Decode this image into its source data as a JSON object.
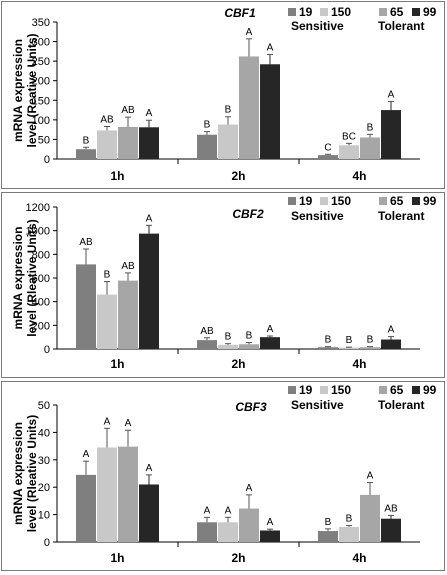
{
  "chart_data": [
    {
      "type": "bar",
      "title": "CBF1",
      "ylabel_line1": "mRNA expression",
      "ylabel_line2": "level (Reative Units)",
      "ylim": [
        0,
        350
      ],
      "yticks": [
        0,
        50,
        100,
        150,
        200,
        250,
        300,
        350
      ],
      "categories": [
        "1h",
        "2h",
        "4h"
      ],
      "legend": {
        "entries": [
          "19",
          "150",
          "65",
          "99"
        ],
        "group_labels": [
          "Sensitive",
          "Tolerant"
        ],
        "placement": "top-right"
      },
      "series": [
        {
          "name": "19",
          "color": "#7f7f7f",
          "values": [
            25,
            62,
            10
          ],
          "errors": [
            5,
            8,
            2
          ],
          "letters": [
            "B",
            "B",
            "C"
          ]
        },
        {
          "name": "150",
          "color": "#c8c8c8",
          "values": [
            73,
            88,
            35
          ],
          "errors": [
            10,
            20,
            5
          ],
          "letters": [
            "AB",
            "B",
            "BC"
          ]
        },
        {
          "name": "65",
          "color": "#a6a6a6",
          "values": [
            82,
            262,
            55
          ],
          "errors": [
            25,
            45,
            8
          ],
          "letters": [
            "AB",
            "A",
            "B"
          ]
        },
        {
          "name": "99",
          "color": "#262626",
          "values": [
            81,
            242,
            125
          ],
          "errors": [
            18,
            25,
            22
          ],
          "letters": [
            "A",
            "A",
            "A"
          ]
        }
      ]
    },
    {
      "type": "bar",
      "title": "CBF2",
      "ylabel_line1": "mRNA expression",
      "ylabel_line2": "level (Rleative Units)",
      "ylim": [
        0,
        1200
      ],
      "yticks": [
        0,
        200,
        400,
        600,
        800,
        1000,
        1200
      ],
      "categories": [
        "1h",
        "2h",
        "4h"
      ],
      "legend": {
        "entries": [
          "19",
          "150",
          "65",
          "99"
        ],
        "group_labels": [
          "Sensitive",
          "Tolerant"
        ],
        "placement": "top-right"
      },
      "series": [
        {
          "name": "19",
          "color": "#7f7f7f",
          "values": [
            715,
            75,
            15
          ],
          "errors": [
            130,
            20,
            5
          ],
          "letters": [
            "AB",
            "AB",
            "B"
          ]
        },
        {
          "name": "150",
          "color": "#c8c8c8",
          "values": [
            460,
            35,
            12
          ],
          "errors": [
            110,
            10,
            4
          ],
          "letters": [
            "B",
            "B",
            "B"
          ]
        },
        {
          "name": "65",
          "color": "#a6a6a6",
          "values": [
            578,
            40,
            15
          ],
          "errors": [
            65,
            15,
            5
          ],
          "letters": [
            "AB",
            "B",
            "B"
          ]
        },
        {
          "name": "99",
          "color": "#262626",
          "values": [
            975,
            100,
            80
          ],
          "errors": [
            70,
            10,
            25
          ],
          "letters": [
            "A",
            "A",
            "A"
          ]
        }
      ]
    },
    {
      "type": "bar",
      "title": "CBF3",
      "ylabel_line1": "mRNA expression",
      "ylabel_line2": "level (Rleative Units)",
      "ylim": [
        0,
        50
      ],
      "yticks": [
        0,
        10,
        20,
        30,
        40,
        50
      ],
      "categories": [
        "1h",
        "2h",
        "4h"
      ],
      "legend": {
        "entries": [
          "19",
          "150",
          "65",
          "99"
        ],
        "group_labels": [
          "Sensitive",
          "Tolerant"
        ],
        "placement": "top-right"
      },
      "series": [
        {
          "name": "19",
          "color": "#7f7f7f",
          "values": [
            24.5,
            7.2,
            4.0
          ],
          "errors": [
            5,
            1.8,
            0.8
          ],
          "letters": [
            "A",
            "A",
            "B"
          ]
        },
        {
          "name": "150",
          "color": "#c8c8c8",
          "values": [
            34.5,
            7.2,
            5.5
          ],
          "errors": [
            7,
            1.8,
            0.5
          ],
          "letters": [
            "A",
            "A",
            "B"
          ]
        },
        {
          "name": "65",
          "color": "#a6a6a6",
          "values": [
            34.8,
            12.2,
            17.2
          ],
          "errors": [
            6,
            5,
            4.5
          ],
          "letters": [
            "A",
            "A",
            "A"
          ]
        },
        {
          "name": "99",
          "color": "#262626",
          "values": [
            21.0,
            4.2,
            8.5
          ],
          "errors": [
            3.5,
            0.5,
            1.2
          ],
          "letters": [
            "A",
            "A",
            "AB"
          ]
        }
      ]
    }
  ]
}
